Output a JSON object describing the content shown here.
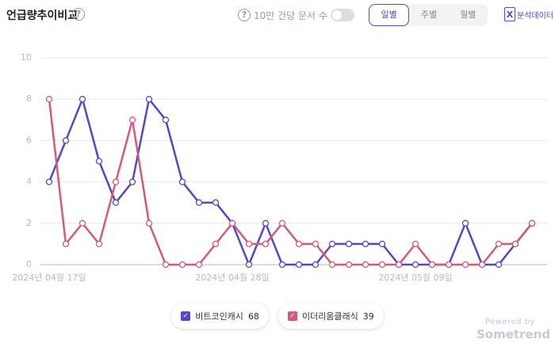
{
  "header": {
    "title": "언급량추이비교",
    "help": "?",
    "toggle_label": "10만 건당 문서 수",
    "tabs": [
      "일별",
      "주별",
      "월별"
    ],
    "export_label": "분석데이터",
    "export_icon": "X"
  },
  "chart_data": {
    "type": "line",
    "categories": [
      "2024년 04월 17일",
      null,
      null,
      null,
      null,
      null,
      null,
      null,
      null,
      null,
      null,
      "2024년 04월 28일",
      null,
      null,
      null,
      null,
      null,
      null,
      null,
      null,
      null,
      null,
      "2024년 05월 09일",
      null,
      null,
      null,
      null,
      null,
      null,
      null
    ],
    "series": [
      {
        "name": "비트코인캐시",
        "total": 68,
        "color": "#5b45c4",
        "values": [
          4,
          6,
          8,
          5,
          3,
          4,
          8,
          7,
          4,
          3,
          3,
          2,
          0,
          2,
          0,
          0,
          0,
          1,
          1,
          1,
          1,
          0,
          0,
          0,
          0,
          2,
          0,
          0,
          1,
          2
        ]
      },
      {
        "name": "이더리움클래식",
        "total": 39,
        "color": "#d45a78",
        "values": [
          8,
          1,
          2,
          1,
          4,
          7,
          2,
          0,
          0,
          0,
          1,
          2,
          1,
          1,
          2,
          1,
          1,
          0,
          0,
          0,
          0,
          0,
          1,
          0,
          0,
          0,
          0,
          1,
          1,
          2
        ]
      }
    ],
    "ylim": [
      0,
      10
    ],
    "yticks": [
      0,
      2,
      4,
      6,
      8,
      10
    ],
    "grid": true
  },
  "footer": {
    "powered_by": "Powered by",
    "brand": "Sometrend"
  }
}
